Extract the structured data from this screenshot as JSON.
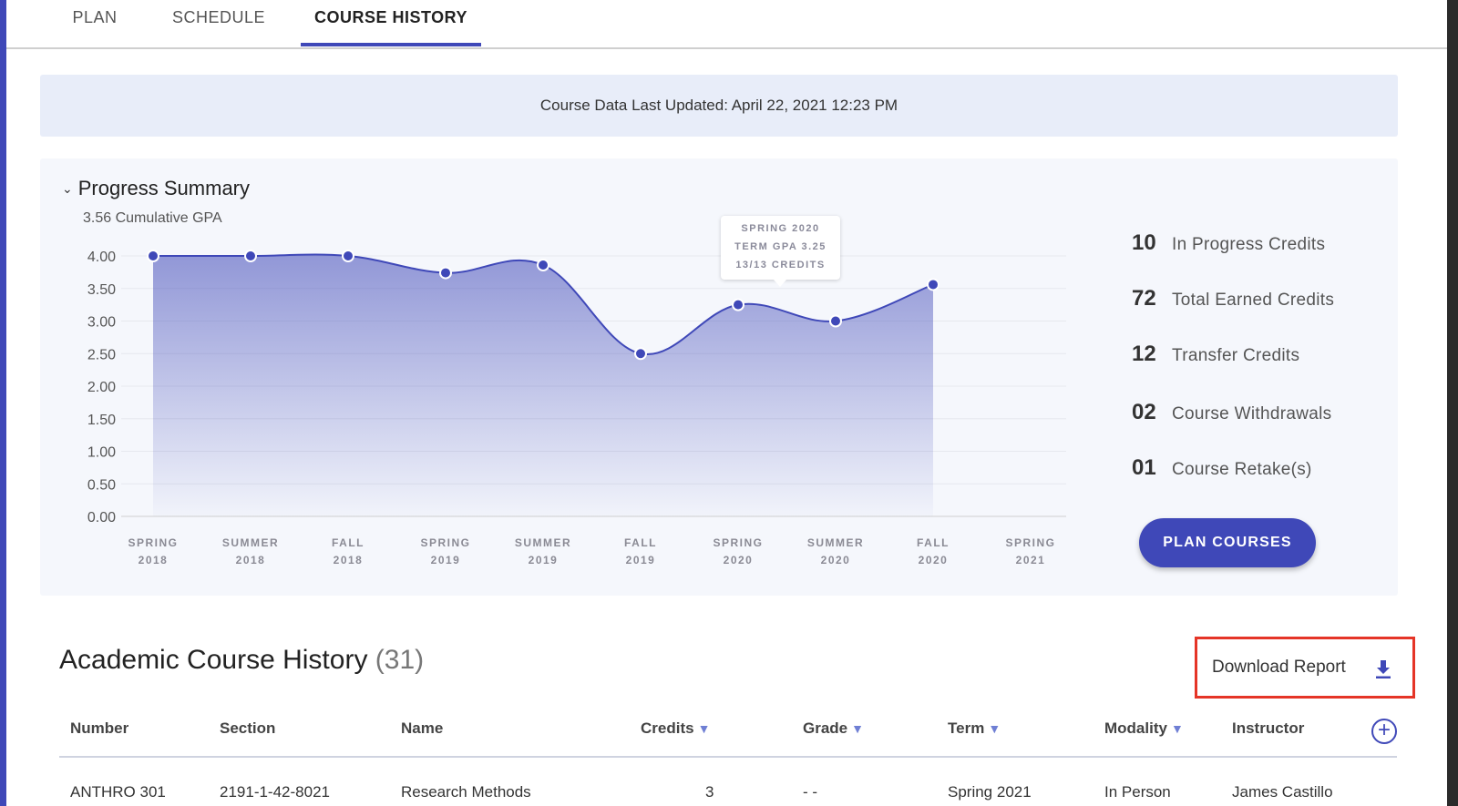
{
  "tabs": [
    {
      "label": "PLAN"
    },
    {
      "label": "SCHEDULE"
    },
    {
      "label": "COURSE HISTORY"
    }
  ],
  "banner": {
    "text": "Course Data Last Updated: April 22, 2021 12:23 PM"
  },
  "progress": {
    "title": "Progress Summary",
    "gpa_label": "3.56 Cumulative GPA",
    "tooltip": {
      "line1": "SPRING 2020",
      "line2": "TERM GPA 3.25",
      "line3": "13/13 CREDITS"
    },
    "stats": [
      {
        "value": "10",
        "label": "In Progress Credits"
      },
      {
        "value": "72",
        "label": "Total Earned Credits"
      },
      {
        "value": "12",
        "label": "Transfer Credits"
      },
      {
        "value": "02",
        "label": "Course Withdrawals"
      },
      {
        "value": "01",
        "label": "Course Retake(s)"
      }
    ],
    "plan_button": "PLAN COURSES"
  },
  "chart_data": {
    "type": "area",
    "x": [
      "SPRING 2018",
      "SUMMER 2018",
      "FALL 2018",
      "SPRING 2019",
      "SUMMER 2019",
      "FALL 2019",
      "SPRING 2020",
      "SUMMER 2020",
      "FALL 2020",
      "SPRING 2021"
    ],
    "series": [
      {
        "values": [
          4.0,
          4.0,
          4.0,
          3.74,
          3.86,
          2.5,
          3.25,
          3.0,
          3.56,
          null
        ]
      }
    ],
    "yticks": [
      "4.00",
      "3.50",
      "3.00",
      "2.50",
      "2.00",
      "1.50",
      "1.00",
      "0.50",
      "0.00"
    ],
    "ylim": [
      0,
      4
    ],
    "color": "#3f48b8",
    "grid": true
  },
  "history": {
    "title": "Academic Course History",
    "count": "(31)",
    "download": "Download Report",
    "columns": [
      {
        "label": "Number",
        "sortable": false
      },
      {
        "label": "Section",
        "sortable": false
      },
      {
        "label": "Name",
        "sortable": false
      },
      {
        "label": "Credits",
        "sortable": true
      },
      {
        "label": "Grade",
        "sortable": true
      },
      {
        "label": "Term",
        "sortable": true
      },
      {
        "label": "Modality",
        "sortable": true
      },
      {
        "label": "Instructor",
        "sortable": false
      }
    ],
    "rows": [
      {
        "number": "ANTHRO 301",
        "section": "2191-1-42-8021",
        "name": "Research Methods",
        "credits": "3",
        "grade": "- -",
        "term": "Spring 2021",
        "modality": "In Person",
        "instructor": "James Castillo"
      }
    ]
  },
  "icons": {
    "sort": "▼",
    "add": "+"
  }
}
